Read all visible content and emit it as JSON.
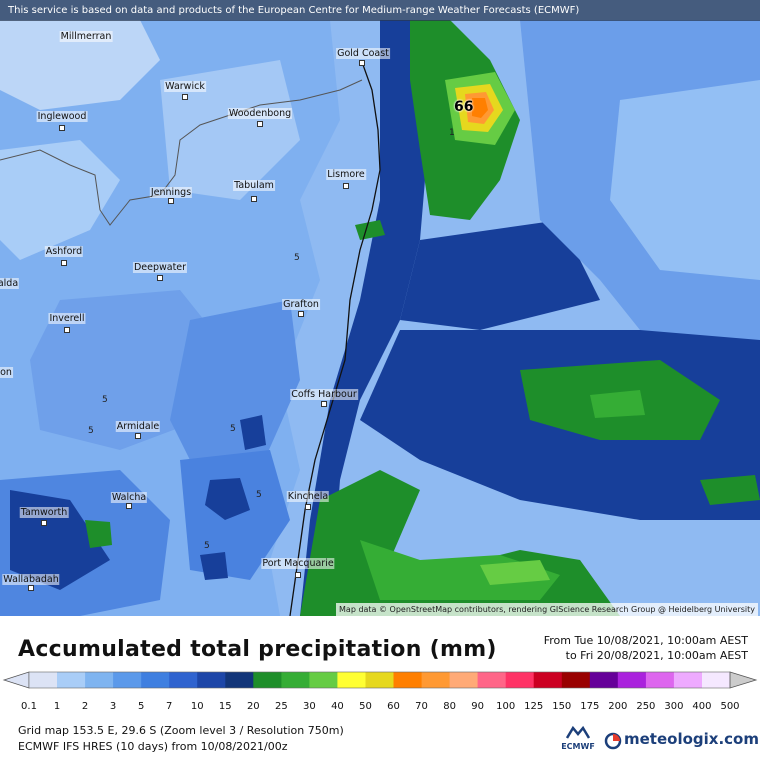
{
  "banner": "This service is based on data and products of the European Centre for Medium-range Weather Forecasts (ECMWF)",
  "attribution": "Map data © OpenStreetMap contributors, rendering GIScience Research Group @ Heidelberg University",
  "cities": [
    {
      "name": "Millmerran",
      "id": "millmerran"
    },
    {
      "name": "Gold Coast",
      "id": "gold-coast"
    },
    {
      "name": "Warwick",
      "id": "warwick"
    },
    {
      "name": "Inglewood",
      "id": "inglewood"
    },
    {
      "name": "Woodenbong",
      "id": "woodenbong"
    },
    {
      "name": "Lismore",
      "id": "lismore"
    },
    {
      "name": "Tabulam",
      "id": "tabulam"
    },
    {
      "name": "Jennings",
      "id": "jennings"
    },
    {
      "name": "Ashford",
      "id": "ashford"
    },
    {
      "name": "Deepwater",
      "id": "deepwater"
    },
    {
      "name": "Grafton",
      "id": "grafton"
    },
    {
      "name": "Inverell",
      "id": "inverell"
    },
    {
      "name": "Coffs Harbour",
      "id": "coffs-harbour"
    },
    {
      "name": "Armidale",
      "id": "armidale"
    },
    {
      "name": "Kinchela",
      "id": "kinchela"
    },
    {
      "name": "Walcha",
      "id": "walcha"
    },
    {
      "name": "Tamworth",
      "id": "tamworth"
    },
    {
      "name": "Port Macquarie",
      "id": "port-macquarie"
    },
    {
      "name": "Wallabadah",
      "id": "wallabadah"
    }
  ],
  "edge_labels": [
    "alda",
    "on"
  ],
  "contour_values": [
    "5",
    "5",
    "5",
    "5",
    "5",
    "5",
    "1"
  ],
  "max_value": "66",
  "legend": {
    "title": "Accumulated total precipitation (mm)",
    "period_from": "From Tue 10/08/2021, 10:00am AEST",
    "period_to": "to Fri 20/08/2021, 10:00am AEST",
    "scale_labels": [
      "0.1",
      "1",
      "2",
      "3",
      "5",
      "7",
      "10",
      "15",
      "20",
      "25",
      "30",
      "40",
      "50",
      "60",
      "70",
      "80",
      "90",
      "100",
      "125",
      "150",
      "175",
      "200",
      "250",
      "300",
      "400",
      "500"
    ],
    "scale_colors": [
      "#dce3f5",
      "#a9cdf7",
      "#7fb4f0",
      "#5b99ea",
      "#3f7fe0",
      "#2f63cf",
      "#1d46a8",
      "#123579",
      "#1e8e2a",
      "#35ad35",
      "#66cc44",
      "#ffff33",
      "#e6d81e",
      "#ff7f00",
      "#ff9933",
      "#ffaa77",
      "#ff6688",
      "#ff3366",
      "#cc0022",
      "#990000",
      "#660099",
      "#aa22dd",
      "#dd66ee",
      "#eeaaff",
      "#f5e8ff",
      "#cccccc"
    ],
    "grid_info": "Grid map 153.5 E, 29.6 S (Zoom level 3 / Resolution 750m)",
    "model_info": "ECMWF IFS HRES (10 days) from 10/08/2021/00z",
    "ecmwf_logo": "ECMWF",
    "brand": "meteologix.com"
  }
}
